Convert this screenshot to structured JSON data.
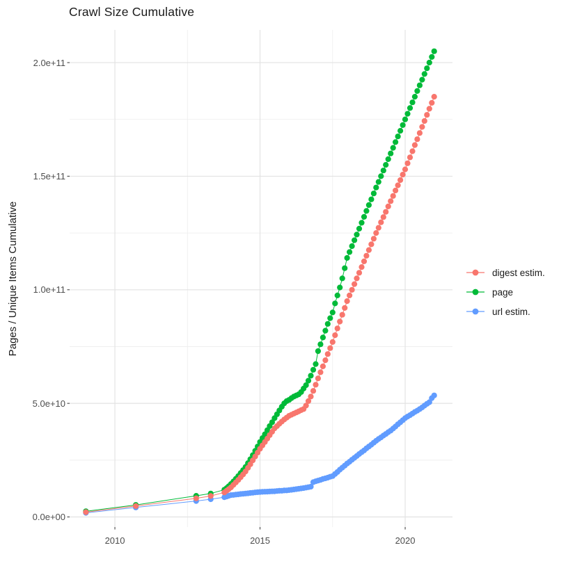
{
  "chart_data": {
    "type": "scatter",
    "title": "Crawl Size Cumulative",
    "xlabel": "",
    "ylabel": "Pages / Unique Items Cumulative",
    "legend_position": "right",
    "grid": "major+minor",
    "background": "#ffffff",
    "grid_major_color": "#e2e2e2",
    "grid_minor_color": "#ededed",
    "tick_color": "#333333",
    "xlim": [
      2008.44,
      2021.63
    ],
    "ylim": [
      -4440000000,
      214400000000
    ],
    "y_scale": 1000000000,
    "point_radius": 4.1,
    "x_ticks": [
      {
        "v": 2010,
        "label": "2010"
      },
      {
        "v": 2015,
        "label": "2015"
      },
      {
        "v": 2020,
        "label": "2020"
      }
    ],
    "x_minor": [
      2012.5,
      2017.5
    ],
    "y_ticks": [
      {
        "v": 0,
        "label": "0.0e+00"
      },
      {
        "v": 50,
        "label": "5.0e+10"
      },
      {
        "v": 100,
        "label": "1.0e+11"
      },
      {
        "v": 150,
        "label": "1.5e+11"
      },
      {
        "v": 200,
        "label": "2.0e+11"
      }
    ],
    "y_minor": [
      25,
      75,
      125,
      175
    ],
    "draw_order": [
      1,
      2,
      0
    ],
    "series": [
      {
        "name": "digest estim.",
        "color": "#F8766D",
        "sparse": [
          [
            2009.0,
            2.1
          ],
          [
            2010.72,
            4.8
          ],
          [
            2012.8,
            8.2
          ],
          [
            2013.3,
            9.2
          ],
          [
            2013.77,
            10.8
          ],
          [
            2013.85,
            11.5
          ],
          [
            2013.92,
            12.2
          ]
        ],
        "monthly_start": 2014.0,
        "monthly_step": 0.0833333,
        "monthly_values": [
          13.0,
          14.1,
          15.2,
          16.3,
          17.5,
          18.7,
          20.0,
          21.6,
          23.2,
          24.9,
          26.6,
          28.3,
          30.0,
          31.5,
          33.0,
          34.5,
          36.0,
          37.5,
          39.0,
          40.0,
          41.0,
          42.0,
          42.9,
          43.7,
          44.5,
          45.0,
          45.5,
          46.0,
          46.5,
          47.0,
          47.5,
          49.0,
          51.0,
          53.0,
          55.5,
          58.2,
          61.0,
          63.7,
          66.3,
          69.0,
          71.7,
          74.3,
          77.0,
          80.0,
          83.0,
          86.0,
          89.0,
          92.0,
          95.0,
          97.5,
          100.0,
          102.5,
          105.0,
          107.5,
          110.0,
          112.5,
          115.0,
          117.5,
          120.0,
          122.5,
          125.0,
          127.3,
          129.7,
          132.0,
          134.3,
          136.7,
          139.0,
          141.3,
          143.7,
          146.0,
          148.3,
          150.7,
          153.0,
          155.7,
          158.3,
          161.0,
          163.7,
          166.3,
          169.0,
          171.7,
          174.3,
          177.0,
          179.7,
          182.3,
          185.0
        ]
      },
      {
        "name": "page",
        "color": "#00BA38",
        "sparse": [
          [
            2009.0,
            2.5
          ],
          [
            2010.72,
            5.3
          ],
          [
            2012.8,
            9.3
          ],
          [
            2013.3,
            10.3
          ],
          [
            2013.77,
            12.0
          ],
          [
            2013.85,
            12.7
          ],
          [
            2013.92,
            13.5
          ]
        ],
        "monthly_start": 2014.0,
        "monthly_step": 0.0833333,
        "monthly_values": [
          14.5,
          15.6,
          16.8,
          18.0,
          19.3,
          20.6,
          22.0,
          23.7,
          25.4,
          27.2,
          29.1,
          31.0,
          33.0,
          34.7,
          36.4,
          38.2,
          40.0,
          41.7,
          43.5,
          45.2,
          46.9,
          48.5,
          50.0,
          51.0,
          51.5,
          52.3,
          53.0,
          53.5,
          54.0,
          55.0,
          56.5,
          58.0,
          60.0,
          62.2,
          64.8,
          67.3,
          73.0,
          76.0,
          79.0,
          82.0,
          85.0,
          87.5,
          90.0,
          94.0,
          97.5,
          101.0,
          105.0,
          109.5,
          114.0,
          116.6,
          119.2,
          121.8,
          124.3,
          126.9,
          129.5,
          132.1,
          134.7,
          137.3,
          139.8,
          142.4,
          145.0,
          147.5,
          150.0,
          152.5,
          155.0,
          157.5,
          160.0,
          162.5,
          165.0,
          167.5,
          170.0,
          172.5,
          175.0,
          177.5,
          180.0,
          182.5,
          185.0,
          187.5,
          190.0,
          192.5,
          195.0,
          197.5,
          200.0,
          202.5,
          205.0
        ]
      },
      {
        "name": "url estim.",
        "color": "#619CFF",
        "sparse": [
          [
            2009.0,
            1.8
          ],
          [
            2010.72,
            4.2
          ],
          [
            2012.8,
            7.0
          ],
          [
            2013.3,
            7.8
          ],
          [
            2013.77,
            8.7
          ],
          [
            2013.85,
            9.0
          ],
          [
            2013.92,
            9.3
          ]
        ],
        "monthly_start": 2014.0,
        "monthly_step": 0.0833333,
        "monthly_values": [
          9.6,
          9.7,
          9.85,
          9.95,
          10.1,
          10.2,
          10.3,
          10.4,
          10.55,
          10.65,
          10.8,
          10.9,
          11.0,
          11.05,
          11.1,
          11.15,
          11.2,
          11.25,
          11.3,
          11.4,
          11.5,
          11.55,
          11.65,
          11.7,
          11.8,
          11.95,
          12.1,
          12.25,
          12.4,
          12.55,
          12.7,
          12.9,
          13.1,
          13.3,
          15.3,
          15.7,
          16.0,
          16.3,
          16.7,
          17.0,
          17.3,
          17.7,
          18.0,
          18.9,
          19.8,
          20.8,
          21.7,
          22.6,
          23.5,
          24.3,
          25.2,
          26.0,
          26.8,
          27.7,
          28.5,
          29.3,
          30.2,
          31.0,
          31.8,
          32.7,
          33.5,
          34.3,
          35.0,
          35.8,
          36.5,
          37.3,
          38.0,
          38.9,
          39.8,
          40.8,
          41.7,
          42.6,
          43.5,
          44.2,
          44.8,
          45.5,
          46.2,
          46.8,
          47.5,
          48.2,
          49.0,
          49.8,
          50.5,
          52.3,
          53.5
        ]
      }
    ]
  }
}
